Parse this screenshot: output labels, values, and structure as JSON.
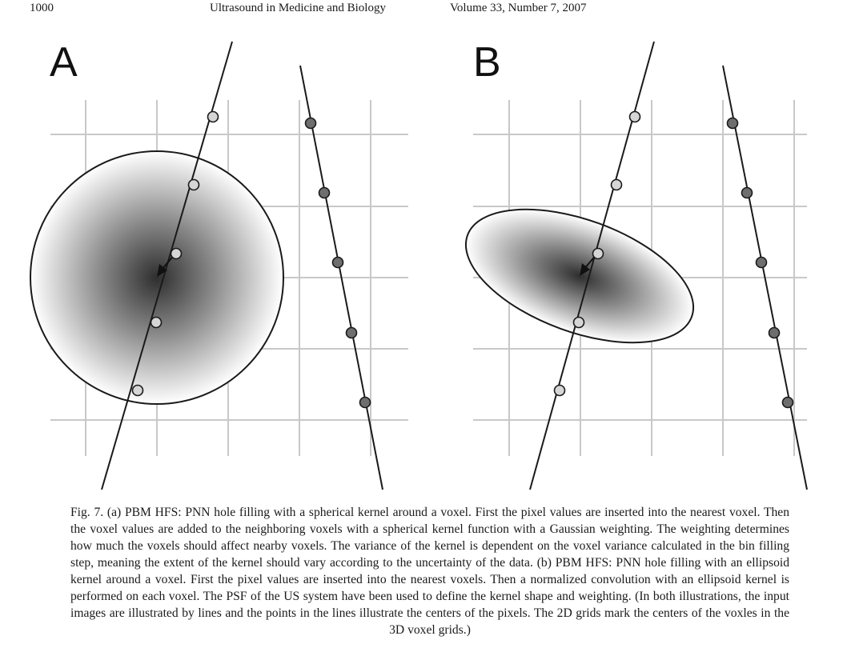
{
  "header": {
    "page_number": "1000",
    "journal": "Ultrasound in Medicine and Biology",
    "volume": "Volume 33, Number 7, 2007"
  },
  "figure": {
    "panels": [
      {
        "label": "A",
        "kernel": "spherical"
      },
      {
        "label": "B",
        "kernel": "ellipsoid"
      }
    ],
    "colors": {
      "grid": "#c8c8c8",
      "light_point": "#d6d6d6",
      "dark_point": "#6e6e6e",
      "line": "#1a1a1a",
      "kernel_center": "#111111"
    }
  },
  "caption": "Fig. 7. (a) PBM HFS: PNN hole filling with a spherical kernel around a voxel. First the pixel values are inserted into the nearest voxel. Then the voxel values are added to the neighboring voxels with a spherical kernel function with a Gaussian weighting. The weighting determines how much the voxels should affect nearby voxels. The variance of the kernel is dependent on the voxel variance calculated in the bin filling step, meaning the extent of the kernel should vary according to the uncertainty of the data. (b) PBM HFS: PNN hole filling with an ellipsoid kernel around a voxel. First the pixel values are inserted into the nearest voxels. Then a normalized convolution with an ellipsoid kernel is performed on each voxel. The PSF of the US system have been used to define the kernel shape and weighting. (In both illustrations, the input images are illustrated by lines and the points in the lines illustrate the centers of the pixels. The 2D grids mark the centers of the voxles in the 3D voxel grids.)"
}
